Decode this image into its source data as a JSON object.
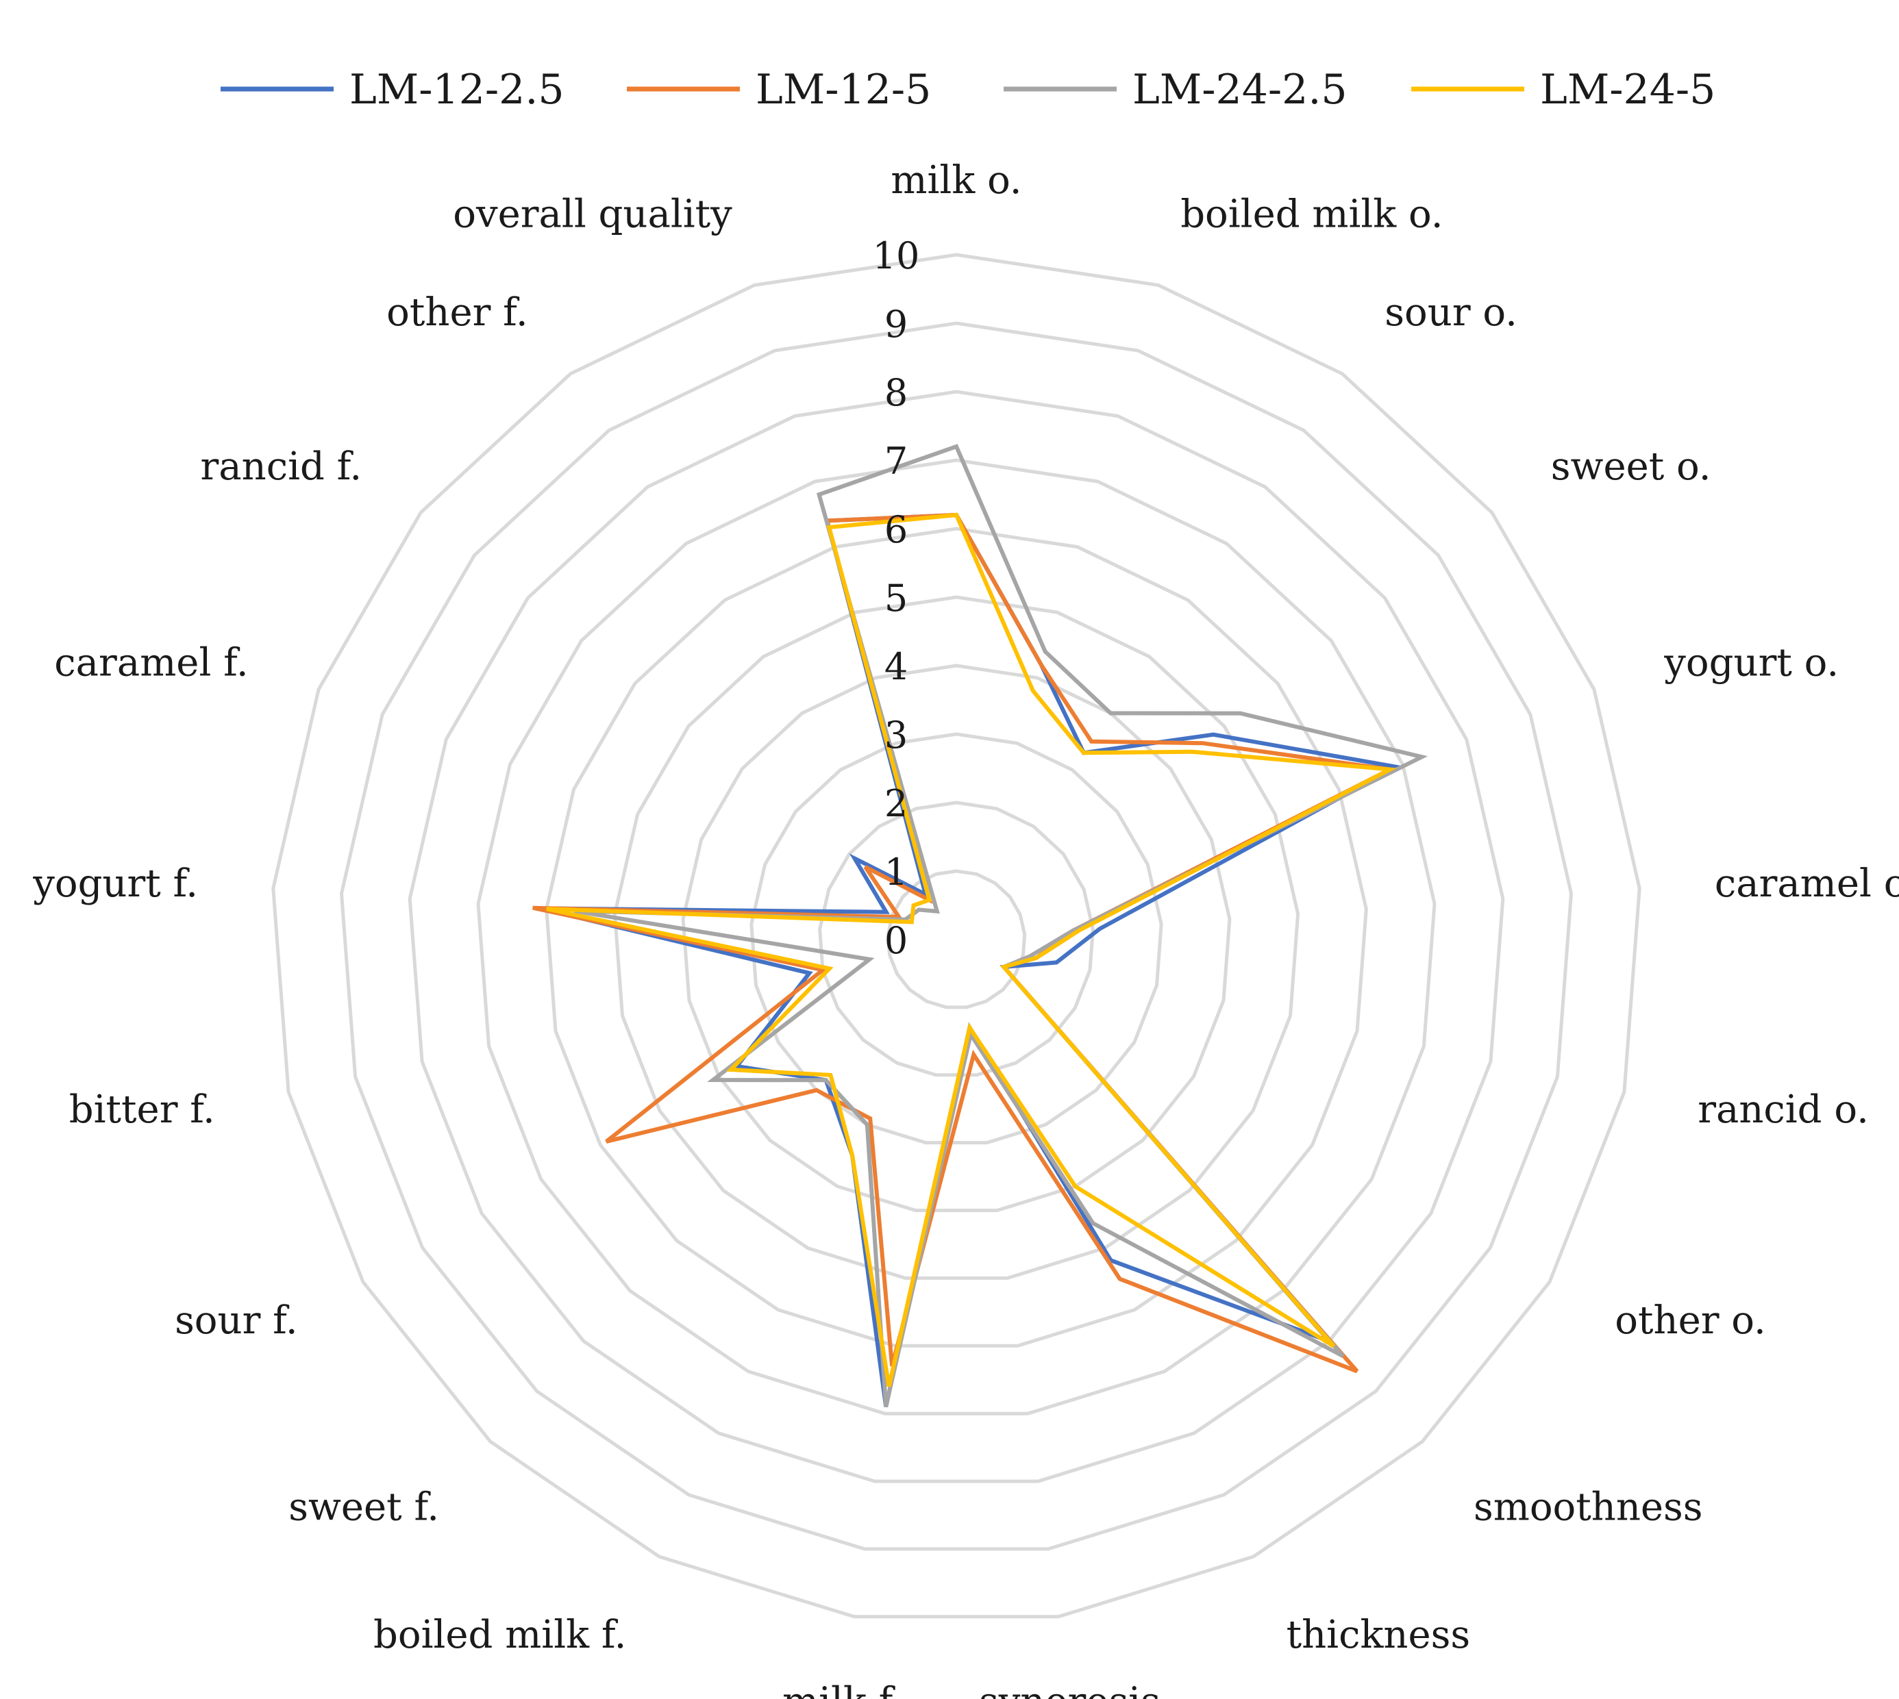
{
  "chart_data": {
    "type": "radar",
    "categories": [
      "milk o.",
      "boiled milk o.",
      "sour o.",
      "sweet o.",
      "yogurt o.",
      "caramel o.",
      "rancid o.",
      "other o.",
      "smoothness",
      "thickness",
      "syneresis",
      "milk f.",
      "boiled milk f.",
      "sweet f.",
      "sour f.",
      "bitter f.",
      "yogurt f.",
      "caramel f.",
      "rancid f.",
      "other f.",
      "overall quality"
    ],
    "r_ticks": [
      "0",
      "1",
      "2",
      "3",
      "4",
      "5",
      "6",
      "7",
      "8",
      "9",
      "10"
    ],
    "rlim": [
      0,
      10
    ],
    "legend_position": "top",
    "grid": true,
    "series": [
      {
        "name": "LM-12-2.5",
        "color": "#4472C4",
        "values": [
          6.2,
          4.2,
          3.3,
          4.8,
          6.9,
          2.1,
          1.5,
          0.8,
          8.0,
          5.2,
          1.3,
          6.9,
          3.5,
          2.8,
          3.7,
          2.2,
          6.1,
          1.1,
          1.9,
          0.8,
          6.4
        ]
      },
      {
        "name": "LM-12-5",
        "color": "#ED7D31",
        "values": [
          6.2,
          4.2,
          3.5,
          4.6,
          6.8,
          1.7,
          1.2,
          0.8,
          8.6,
          5.5,
          1.7,
          6.3,
          2.9,
          3.0,
          5.9,
          2.0,
          6.2,
          0.9,
          1.7,
          0.7,
          6.4
        ]
      },
      {
        "name": "LM-24-2.5",
        "color": "#A5A5A5",
        "values": [
          7.2,
          4.4,
          4.0,
          5.3,
          7.3,
          1.7,
          1.1,
          0.8,
          8.3,
          4.6,
          1.4,
          6.9,
          3.0,
          2.8,
          4.1,
          1.3,
          5.6,
          0.8,
          0.7,
          0.5,
          6.8
        ]
      },
      {
        "name": "LM-24-5",
        "color": "#FFC000",
        "values": [
          6.2,
          3.8,
          3.3,
          4.4,
          6.8,
          1.8,
          1.2,
          0.8,
          8.1,
          4.0,
          1.3,
          6.6,
          3.5,
          2.7,
          3.8,
          1.9,
          6.0,
          0.7,
          0.8,
          0.7,
          6.3
        ]
      }
    ]
  }
}
